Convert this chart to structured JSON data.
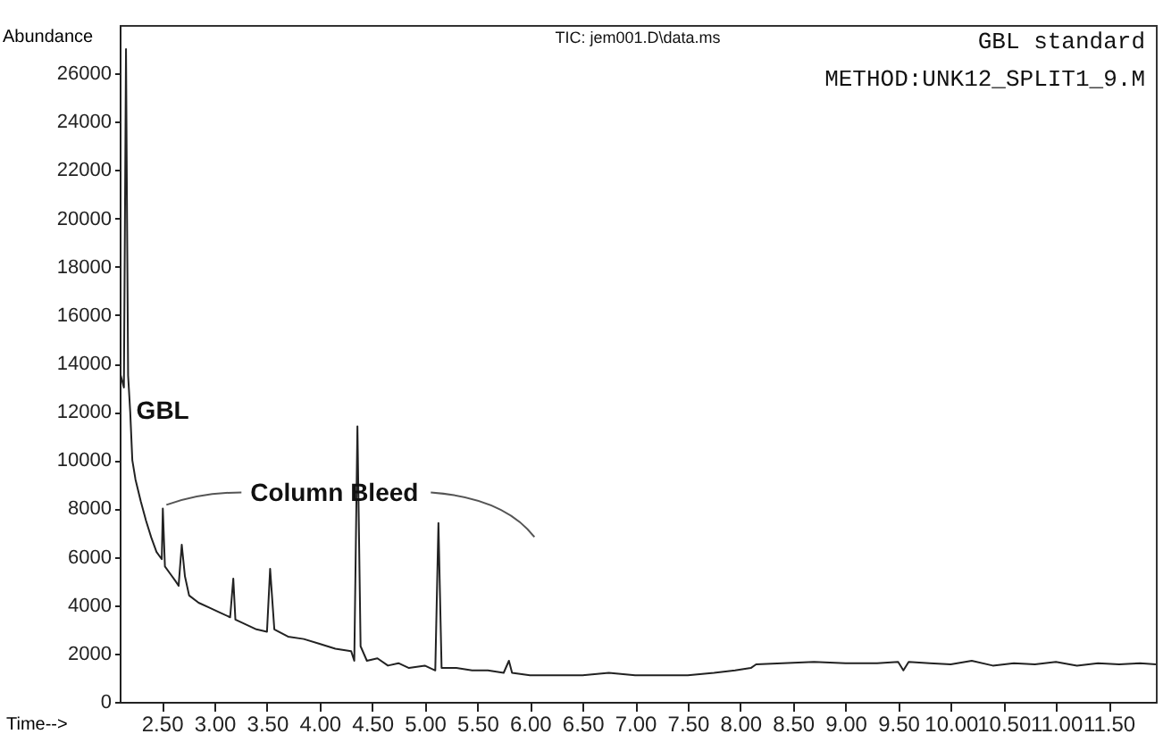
{
  "chart_data": {
    "type": "line",
    "title": "TIC: jem001.D\\data.ms",
    "xlabel": "Time-->",
    "ylabel": "Abundance",
    "x": [
      2.11,
      2.14,
      2.16,
      2.17,
      2.18,
      2.2,
      2.22,
      2.25,
      2.3,
      2.35,
      2.4,
      2.45,
      2.5,
      2.51,
      2.53,
      2.58,
      2.63,
      2.66,
      2.69,
      2.72,
      2.76,
      2.85,
      2.95,
      3.05,
      3.15,
      3.18,
      3.2,
      3.3,
      3.4,
      3.5,
      3.53,
      3.57,
      3.7,
      3.85,
      4.0,
      4.15,
      4.3,
      4.33,
      4.36,
      4.39,
      4.45,
      4.55,
      4.65,
      4.75,
      4.85,
      5.0,
      5.1,
      5.13,
      5.16,
      5.3,
      5.45,
      5.6,
      5.75,
      5.8,
      5.83,
      6.0,
      6.25,
      6.5,
      6.75,
      7.0,
      7.25,
      7.5,
      7.75,
      7.95,
      8.1,
      8.15,
      8.4,
      8.7,
      9.0,
      9.3,
      9.5,
      9.55,
      9.6,
      9.8,
      10.0,
      10.2,
      10.4,
      10.6,
      10.8,
      11.0,
      11.2,
      11.4,
      11.6,
      11.8,
      11.95
    ],
    "series": [
      {
        "color": "#222222",
        "values": [
          13500,
          13000,
          27000,
          20000,
          13500,
          12000,
          10000,
          9200,
          8300,
          7500,
          6800,
          6200,
          5900,
          8000,
          5600,
          5300,
          5000,
          4800,
          6500,
          5200,
          4400,
          4100,
          3900,
          3700,
          3500,
          5100,
          3400,
          3200,
          3000,
          2900,
          5500,
          3000,
          2700,
          2600,
          2400,
          2200,
          2100,
          1700,
          11400,
          2300,
          1700,
          1800,
          1500,
          1600,
          1400,
          1500,
          1300,
          7400,
          1400,
          1400,
          1300,
          1300,
          1200,
          1700,
          1200,
          1100,
          1100,
          1100,
          1200,
          1100,
          1100,
          1100,
          1200,
          1300,
          1400,
          1550,
          1600,
          1650,
          1600,
          1600,
          1650,
          1300,
          1650,
          1600,
          1550,
          1700,
          1500,
          1600,
          1550,
          1650,
          1500,
          1600,
          1550,
          1600,
          1550
        ]
      }
    ],
    "xlim": [
      2.1,
      11.95
    ],
    "xticks": [
      {
        "value": 2.5,
        "label": "2.50"
      },
      {
        "value": 3,
        "label": "3.00"
      },
      {
        "value": 3.5,
        "label": "3.50"
      },
      {
        "value": 4,
        "label": "4.00"
      },
      {
        "value": 4.5,
        "label": "4.50"
      },
      {
        "value": 5,
        "label": "5.00"
      },
      {
        "value": 5.5,
        "label": "5.50"
      },
      {
        "value": 6,
        "label": "6.00"
      },
      {
        "value": 6.5,
        "label": "6.50"
      },
      {
        "value": 7,
        "label": "7.00"
      },
      {
        "value": 7.5,
        "label": "7.50"
      },
      {
        "value": 8,
        "label": "8.00"
      },
      {
        "value": 8.5,
        "label": "8.50"
      },
      {
        "value": 9,
        "label": "9.00"
      },
      {
        "value": 9.5,
        "label": "9.50"
      },
      {
        "value": 10,
        "label": "10.00"
      },
      {
        "value": 10.5,
        "label": "10.50"
      },
      {
        "value": 11,
        "label": "11.00"
      },
      {
        "value": 11.5,
        "label": "11.50"
      }
    ],
    "ylim": [
      0,
      28000
    ],
    "yticks": [
      0,
      2000,
      4000,
      6000,
      8000,
      10000,
      12000,
      14000,
      16000,
      18000,
      20000,
      22000,
      24000,
      26000
    ],
    "grid": false,
    "marker": "none",
    "line_style": "solid",
    "annotations": [
      {
        "text": "GBL",
        "x": 2.19,
        "y": 12000
      },
      {
        "text": "Column Bleed",
        "x": 2.51,
        "y": 8000
      },
      "GBL standard",
      "METHOD:UNK12_SPLIT1_9.M"
    ]
  }
}
